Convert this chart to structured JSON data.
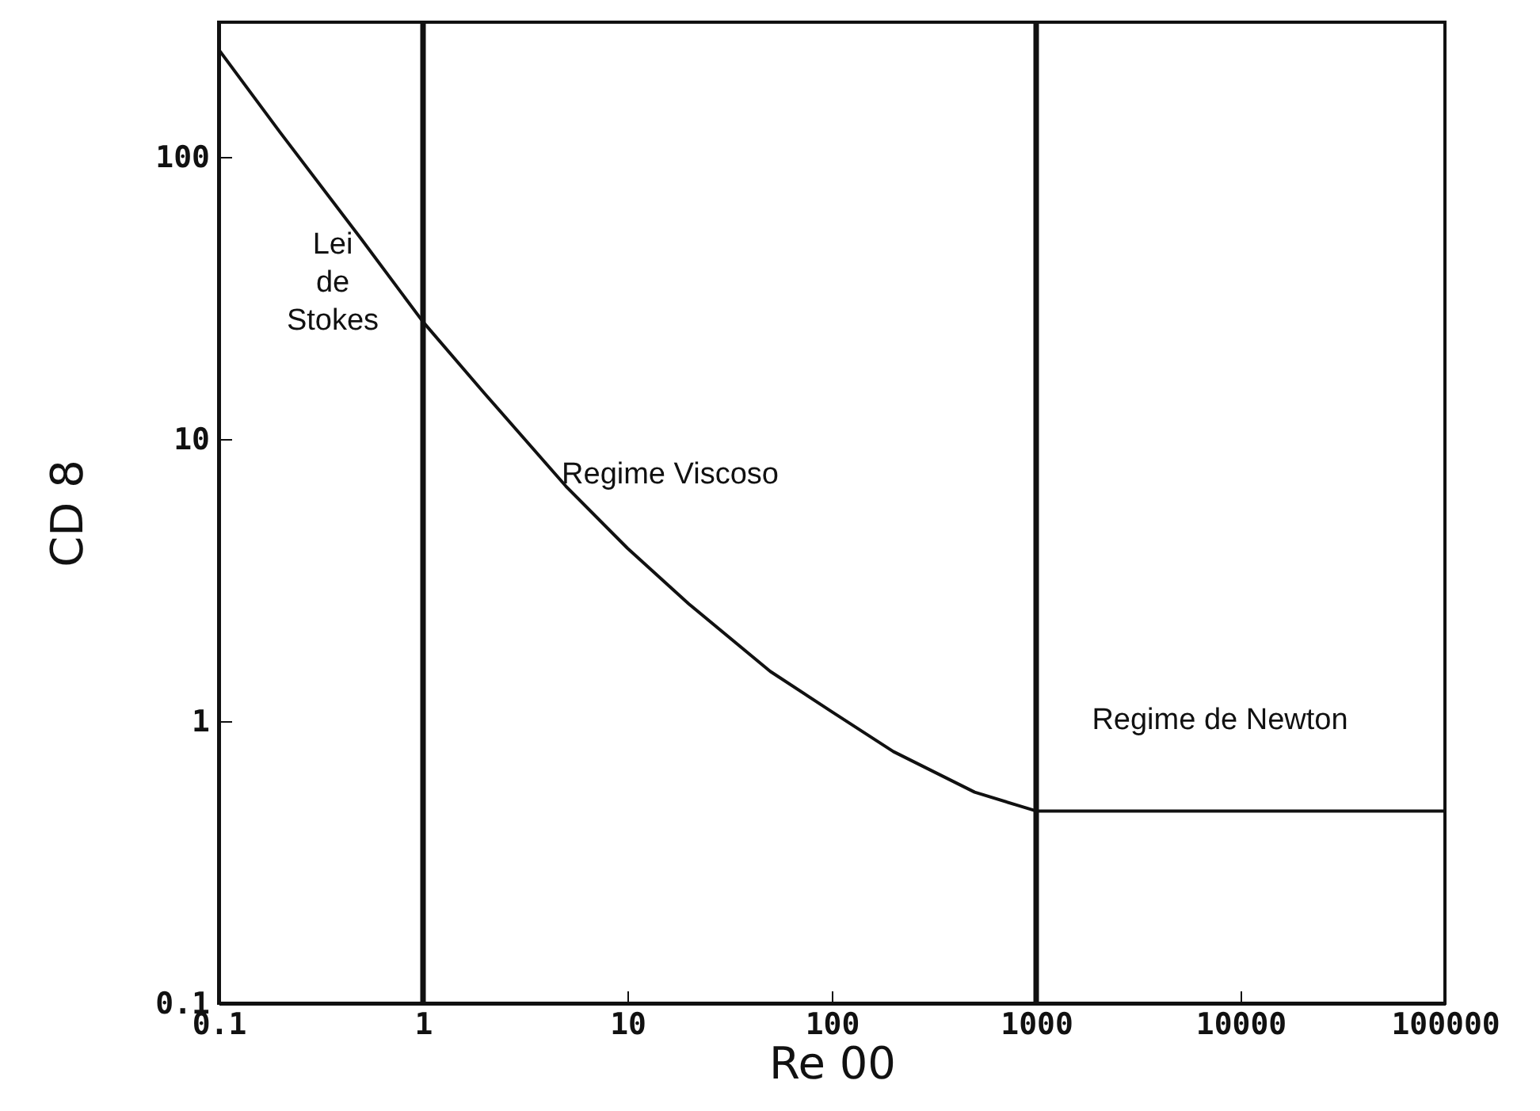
{
  "chart_data": {
    "type": "line",
    "xlabel": "Re 00",
    "ylabel": "CD 8",
    "log": "xy",
    "x": [
      0.1,
      0.2,
      0.5,
      1,
      2,
      5,
      10,
      20,
      50,
      100,
      200,
      500,
      1000,
      100000
    ],
    "series": [
      {
        "color": "#111111",
        "values": [
          240,
          122,
          51,
          26,
          14.5,
          6.8,
          4.1,
          2.6,
          1.5,
          1.08,
          0.78,
          0.56,
          0.48,
          0.48
        ]
      }
    ],
    "xlim": [
      0.1,
      100000
    ],
    "xticks": [
      0.1,
      1,
      10,
      100,
      1000,
      10000,
      100000
    ],
    "ylim": [
      0.1,
      300
    ],
    "yticks": [
      0.1,
      1,
      10,
      100
    ],
    "ref_lines": [
      {
        "axis": "x",
        "value": 1,
        "color": "#111111"
      },
      {
        "axis": "x",
        "value": 1000,
        "color": "#111111"
      }
    ],
    "annotations": [
      "Lei\nde\nStokes",
      "Regime Viscoso",
      "Regime de Newton"
    ],
    "grid": false,
    "marker": "none",
    "line_style": "solid"
  }
}
